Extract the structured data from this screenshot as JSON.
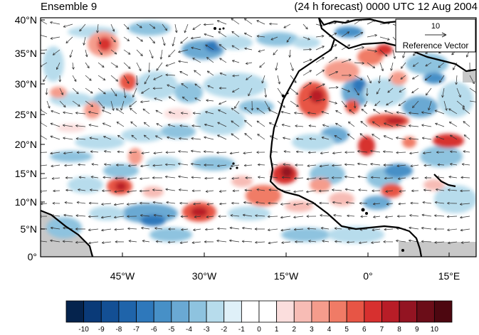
{
  "title_left": "Ensemble 9",
  "title_right": "(24 h forecast) 0000 UTC 12 Aug 2004",
  "reference_vector": {
    "magnitude": "10",
    "label": "Reference Vector"
  },
  "lat_ticks": [
    "40°N",
    "35°N",
    "30°N",
    "25°N",
    "20°N",
    "15°N",
    "10°N",
    "5°N",
    "0°"
  ],
  "lon_ticks": [
    "45°W",
    "30°W",
    "15°W",
    "0°",
    "15°E"
  ],
  "colorbar": {
    "labels": [
      "-10",
      "-9",
      "-8",
      "-7",
      "-6",
      "-5",
      "-4",
      "-3",
      "-2",
      "-1",
      "0",
      "1",
      "2",
      "3",
      "4",
      "5",
      "6",
      "7",
      "8",
      "9",
      "10"
    ],
    "colors": [
      "#05234d",
      "#0a3a78",
      "#134f94",
      "#1f64aa",
      "#2e78bb",
      "#4790c7",
      "#6aa9d3",
      "#8ec3df",
      "#b7dcec",
      "#dff0f8",
      "#ffffff",
      "#ffffff",
      "#fbdedd",
      "#f7bcb5",
      "#f59c8c",
      "#f07b66",
      "#e75545",
      "#d7302f",
      "#b81d27",
      "#931422",
      "#6b0d18",
      "#4d0710"
    ]
  },
  "colors": {
    "land_outline": "#000000",
    "missing_data": "#c8c8c8",
    "arrows": "#333333"
  }
}
